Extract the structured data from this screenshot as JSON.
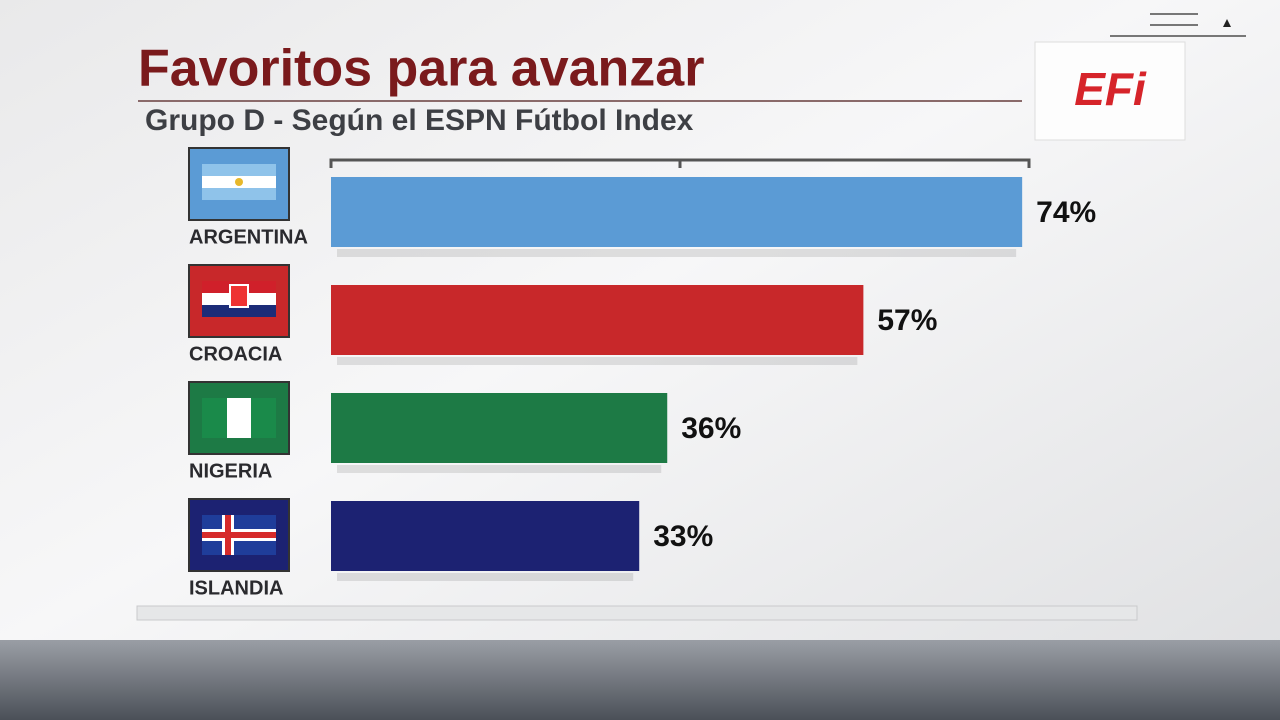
{
  "chart_data": {
    "type": "bar",
    "orientation": "horizontal",
    "title": "Favoritos para avanzar",
    "subtitle": "Grupo D - Según el ESPN Fútbol Index",
    "logo": "EFi",
    "categories": [
      "ARGENTINA",
      "CROACIA",
      "NIGERIA",
      "ISLANDIA"
    ],
    "values": [
      74,
      57,
      36,
      33
    ],
    "value_labels": [
      "74%",
      "57%",
      "36%",
      "33%"
    ],
    "colors": [
      "#5b9bd5",
      "#c8282a",
      "#1d7a45",
      "#1c2272"
    ],
    "xlim": [
      0,
      100
    ]
  }
}
